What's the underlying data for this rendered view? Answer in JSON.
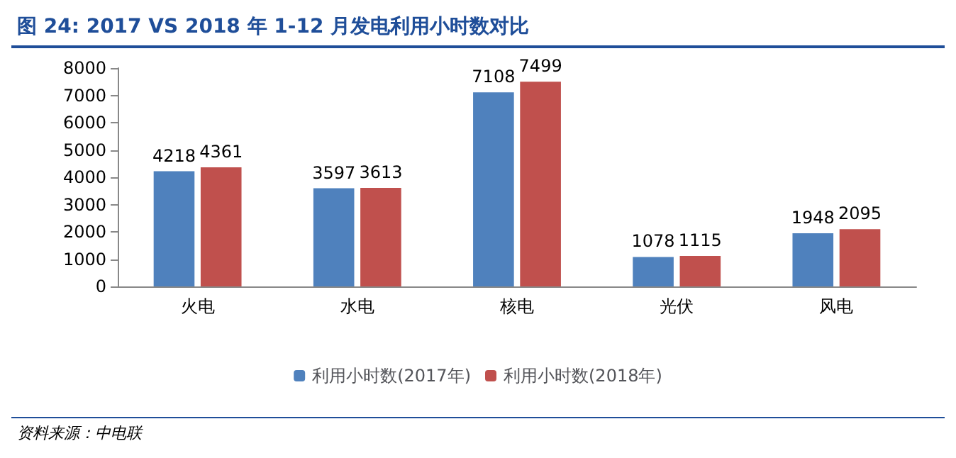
{
  "chart_data": {
    "type": "bar",
    "title": "图 24: 2017 VS 2018 年 1-12 月发电利用小时数对比",
    "categories": [
      "火电",
      "水电",
      "核电",
      "光伏",
      "风电"
    ],
    "series": [
      {
        "name": "利用小时数(2017年)",
        "color": "#4f81bd",
        "values": [
          4218,
          3597,
          7108,
          1078,
          1948
        ]
      },
      {
        "name": "利用小时数(2018年)",
        "color": "#c0504d",
        "values": [
          4361,
          3613,
          7499,
          1115,
          2095
        ]
      }
    ],
    "ylim": [
      0,
      8000
    ],
    "yticks": [
      0,
      1000,
      2000,
      3000,
      4000,
      5000,
      6000,
      7000,
      8000
    ],
    "data_labels": true,
    "grid": false,
    "legend": "bottom",
    "annotations": [
      "资料来源：中电联"
    ]
  }
}
